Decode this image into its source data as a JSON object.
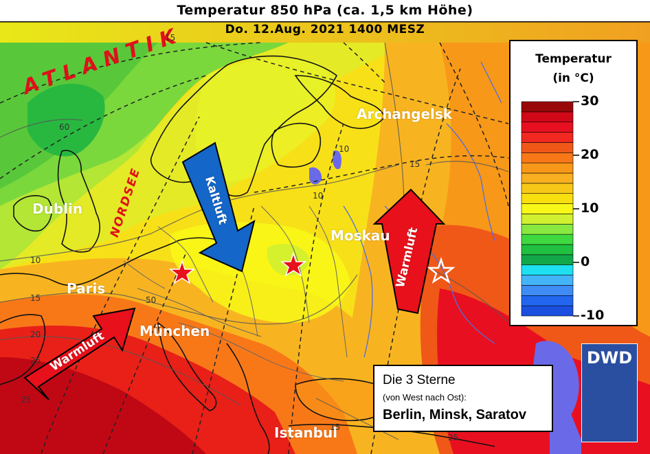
{
  "title": {
    "line1": "Temperatur 850 hPa (ca. 1,5 km Höhe)",
    "line2": "Do. 12.Aug. 2021 1400 MESZ"
  },
  "regions": {
    "atlantik": "ATLANTIK",
    "nordsee": "NORDSEE"
  },
  "cities": {
    "dublin": "Dublin",
    "paris": "Paris",
    "muenchen": "München",
    "moskau": "Moskau",
    "archangelsk": "Archangelsk",
    "istanbul": "Istanbul"
  },
  "arrows": {
    "kaltluft": "Kaltluft",
    "warmluft_west": "Warmluft",
    "warmluft_east": "Warmluft"
  },
  "contour_labels": [
    "10",
    "10",
    "15",
    "10",
    "15",
    "50",
    "20",
    "25",
    "15",
    "15",
    "25",
    "60",
    "25"
  ],
  "legend": {
    "title_line1": "Temperatur",
    "title_line2": "(in °C)",
    "ticks": [
      "30",
      "20",
      "10",
      "0",
      "-10"
    ],
    "range": [
      -10,
      30
    ],
    "step": 2,
    "colors": [
      "#1a4fe0",
      "#2266f0",
      "#3f8cf5",
      "#44b4f8",
      "#1ee0f0",
      "#12a84a",
      "#20c040",
      "#40d840",
      "#88e840",
      "#d0f030",
      "#f8f818",
      "#f8e010",
      "#f8c818",
      "#f8b020",
      "#f89818",
      "#f87818",
      "#f05818",
      "#f02820",
      "#e81020",
      "#d00818",
      "#980808"
    ]
  },
  "stars": {
    "names": [
      "Berlin",
      "Minsk",
      "Saratov"
    ]
  },
  "infobox": {
    "line1": "Die 3 Sterne",
    "line2": "(von West nach Ost):",
    "line3": "Berlin, Minsk, Saratov"
  },
  "logo": {
    "text": "DWD",
    "color": "#2a4fa0"
  },
  "colors": {
    "cold_arrow": "#1466c8",
    "warm_arrow": "#e8101a",
    "star": "#e8101a"
  }
}
